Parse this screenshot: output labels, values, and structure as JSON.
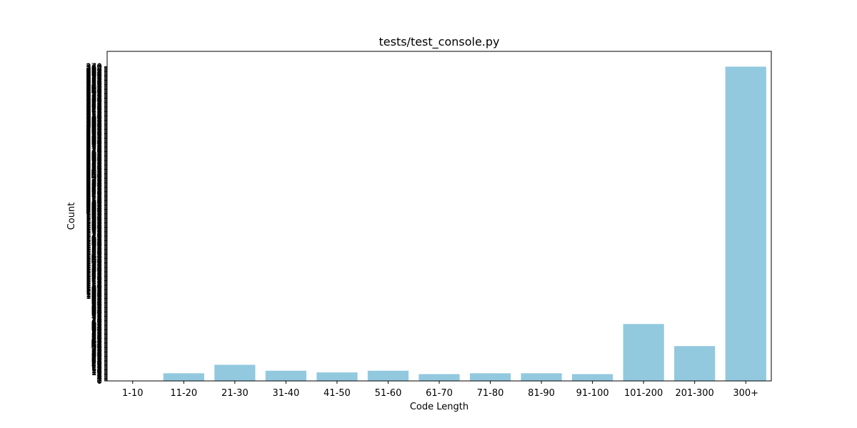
{
  "chart_data": {
    "type": "bar",
    "title": "tests/test_console.py",
    "xlabel": "Code Length",
    "ylabel": "Count",
    "categories": [
      "1-10",
      "11-20",
      "21-30",
      "31-40",
      "41-50",
      "51-60",
      "61-70",
      "71-80",
      "81-90",
      "91-100",
      "101-200",
      "201-300",
      "300+"
    ],
    "values": [
      0,
      9,
      19,
      12,
      10,
      12,
      8,
      9,
      9,
      8,
      67,
      41,
      370
    ],
    "ylim": [
      0,
      388
    ],
    "ytick_step": 1,
    "bar_color": "#92c9df",
    "grid": false,
    "legend": "none"
  }
}
